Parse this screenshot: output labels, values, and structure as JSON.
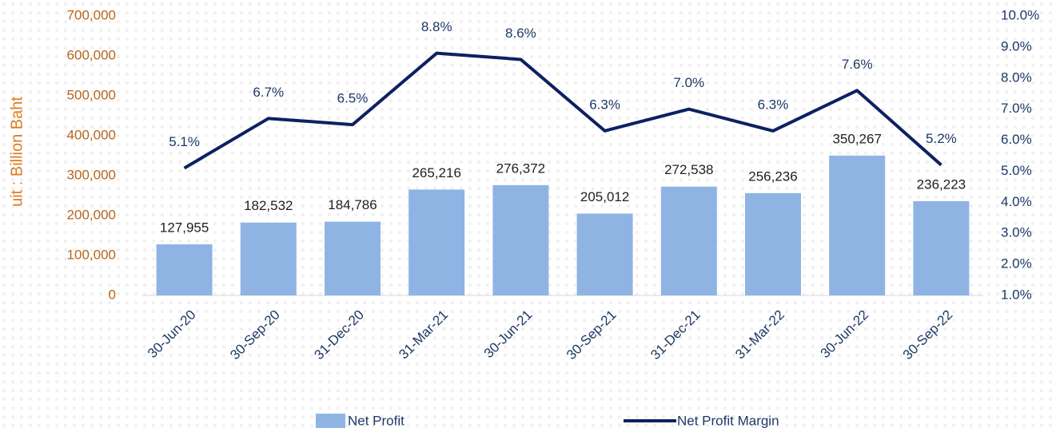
{
  "chart_data": {
    "type": "bar",
    "y_label": "uit :  Billion Baht",
    "categories": [
      "30-Jun-20",
      "30-Sep-20",
      "31-Dec-20",
      "31-Mar-21",
      "30-Jun-21",
      "30-Sep-21",
      "31-Dec-21",
      "31-Mar-22",
      "30-Jun-22",
      "30-Sep-22"
    ],
    "series": [
      {
        "name": "Net Profit",
        "type": "bar",
        "color": "#8fb4e3",
        "values": [
          127955,
          182532,
          184786,
          265216,
          276372,
          205012,
          272538,
          256236,
          350267,
          236223
        ],
        "value_labels": [
          "127,955",
          "182,532",
          "184,786",
          "265,216",
          "276,372",
          "205,012",
          "272,538",
          "256,236",
          "350,267",
          "236,223"
        ]
      },
      {
        "name": "Net Profit Margin",
        "type": "line",
        "axis": "y2",
        "color": "#0d2161",
        "values": [
          5.1,
          6.7,
          6.5,
          8.8,
          8.6,
          6.3,
          7.0,
          6.3,
          7.6,
          5.2
        ],
        "value_labels": [
          "5.1%",
          "6.7%",
          "6.5%",
          "8.8%",
          "8.6%",
          "6.3%",
          "7.0%",
          "6.3%",
          "7.6%",
          "5.2%"
        ]
      }
    ],
    "ylim": [
      0,
      700000
    ],
    "yticks": [
      0,
      {
        "value": 100000,
        "label": "100,000"
      },
      {
        "value": 200000,
        "label": "200,000"
      },
      {
        "value": 300000,
        "label": "300,000"
      },
      {
        "value": 400000,
        "label": "400,000"
      },
      {
        "value": 500000,
        "label": "500,000"
      },
      {
        "value": 600000,
        "label": "600,000"
      },
      {
        "value": 700000,
        "label": "700,000"
      }
    ],
    "y2lim": [
      1.0,
      10.0
    ],
    "y2ticks": [
      {
        "value": 1.0,
        "label": "1.0%"
      },
      {
        "value": 2.0,
        "label": "2.0%"
      },
      {
        "value": 3.0,
        "label": "3.0%"
      },
      {
        "value": 4.0,
        "label": "4.0%"
      },
      {
        "value": 5.0,
        "label": "5.0%"
      },
      {
        "value": 6.0,
        "label": "6.0%"
      },
      {
        "value": 7.0,
        "label": "7.0%"
      },
      {
        "value": 8.0,
        "label": "8.0%"
      },
      {
        "value": 9.0,
        "label": "9.0%"
      },
      {
        "value": 10.0,
        "label": "10.0%"
      }
    ],
    "legend": "bottom"
  }
}
